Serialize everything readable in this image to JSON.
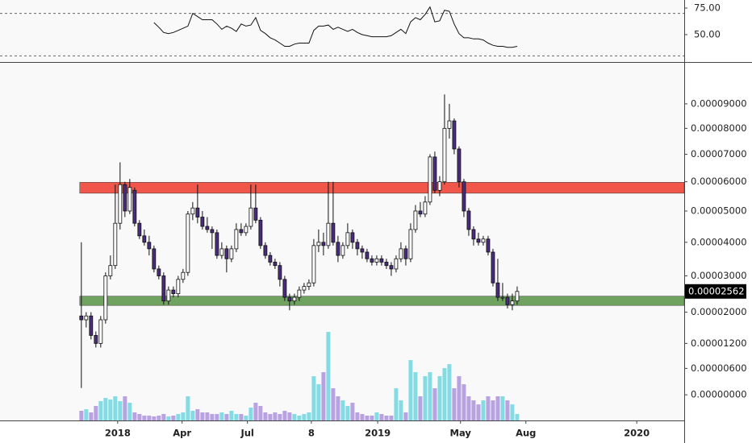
{
  "chart_data": {
    "type": "candlestick",
    "xlim": [
      -16.8,
      124.5
    ],
    "xticks": [
      {
        "value": 7.5,
        "label": "2018"
      },
      {
        "value": 20.8,
        "label": "Apr"
      },
      {
        "value": 34.3,
        "label": "Jul"
      },
      {
        "value": 47.5,
        "label": "8"
      },
      {
        "value": 61.2,
        "label": "2019"
      },
      {
        "value": 78.3,
        "label": "May"
      },
      {
        "value": 91.8,
        "label": "Aug"
      },
      {
        "value": 114.7,
        "label": "2020"
      }
    ],
    "ylim": [
      -5.5e-06,
      0.000108
    ],
    "log_scale": true,
    "yticks": [
      {
        "value": 9e-05,
        "label": "0.00009000"
      },
      {
        "value": 8e-05,
        "label": "0.00008000"
      },
      {
        "value": 7e-05,
        "label": "0.00007000"
      },
      {
        "value": 6e-05,
        "label": "0.00006000"
      },
      {
        "value": 5e-05,
        "label": "0.00005000"
      },
      {
        "value": 4e-05,
        "label": "0.00004000"
      },
      {
        "value": 3e-05,
        "label": "0.00003000"
      },
      {
        "value": 2e-05,
        "label": "0.00002000"
      },
      {
        "value": 1.2e-05,
        "label": "0.00001200"
      },
      {
        "value": 6e-06,
        "label": "0.00000600"
      },
      {
        "value": 0,
        "label": "0.00000000"
      }
    ],
    "up_color": "#ffffff",
    "down_color": "#4b2a82",
    "wick_color": "#111111",
    "candles": [
      [
        1.9e-05,
        4e-05,
        1.5e-06,
        1.8e-05
      ],
      [
        1.8e-05,
        2e-05,
        1.6e-05,
        1.9e-05
      ],
      [
        1.9e-05,
        2e-05,
        1.3e-05,
        1.4e-05
      ],
      [
        1.4e-05,
        1.5e-05,
        1.1e-05,
        1.2e-05
      ],
      [
        1.2e-05,
        1.9e-05,
        1.1e-05,
        1.8e-05
      ],
      [
        1.8e-05,
        3.1e-05,
        1.7e-05,
        3e-05
      ],
      [
        3e-05,
        3.6e-05,
        2.9e-05,
        3.3e-05
      ],
      [
        3.3e-05,
        5.9e-05,
        3.2e-05,
        4.6e-05
      ],
      [
        4.6e-05,
        6.7e-05,
        4.4e-05,
        5.9e-05
      ],
      [
        5.9e-05,
        6e-05,
        4.8e-05,
        5e-05
      ],
      [
        5e-05,
        6.1e-05,
        4.9e-05,
        5.8e-05
      ],
      [
        5.7e-05,
        5.8e-05,
        4.5e-05,
        4.6e-05
      ],
      [
        4.6e-05,
        4.7e-05,
        4.1e-05,
        4.2e-05
      ],
      [
        4.2e-05,
        4.4e-05,
        3.9e-05,
        4e-05
      ],
      [
        4e-05,
        4.2e-05,
        3.6e-05,
        3.8e-05
      ],
      [
        3.8e-05,
        3.9e-05,
        3.1e-05,
        3.2e-05
      ],
      [
        3.2e-05,
        3.3e-05,
        2.9e-05,
        3e-05
      ],
      [
        3e-05,
        3.1e-05,
        2.2e-05,
        2.3e-05
      ],
      [
        2.3e-05,
        2.7e-05,
        2.2e-05,
        2.6e-05
      ],
      [
        2.6e-05,
        2.7e-05,
        2.4e-05,
        2.5e-05
      ],
      [
        2.5e-05,
        3e-05,
        2.4e-05,
        2.9e-05
      ],
      [
        2.9e-05,
        3.2e-05,
        2.8e-05,
        3.1e-05
      ],
      [
        3.1e-05,
        5e-05,
        3e-05,
        4.9e-05
      ],
      [
        4.9e-05,
        5.3e-05,
        4.7e-05,
        5.1e-05
      ],
      [
        5.1e-05,
        5.9e-05,
        4.6e-05,
        4.8e-05
      ],
      [
        4.8e-05,
        5e-05,
        4.4e-05,
        4.5e-05
      ],
      [
        4.5e-05,
        4.8e-05,
        4.3e-05,
        4.4e-05
      ],
      [
        4.4e-05,
        4.5e-05,
        3.8e-05,
        4.3e-05
      ],
      [
        4.3e-05,
        4.4e-05,
        3.5e-05,
        3.6e-05
      ],
      [
        3.6e-05,
        4e-05,
        3.5e-05,
        3.8e-05
      ],
      [
        3.8e-05,
        3.9e-05,
        3.1e-05,
        3.5e-05
      ],
      [
        3.5e-05,
        3.9e-05,
        3.4e-05,
        3.8e-05
      ],
      [
        3.8e-05,
        4.6e-05,
        3.7e-05,
        4.4e-05
      ],
      [
        4.4e-05,
        4.6e-05,
        4.2e-05,
        4.3e-05
      ],
      [
        4.3e-05,
        4.6e-05,
        4.2e-05,
        4.5e-05
      ],
      [
        4.5e-05,
        5.9e-05,
        4.4e-05,
        5.1e-05
      ],
      [
        5.1e-05,
        5.9e-05,
        4.6e-05,
        4.7e-05
      ],
      [
        4.7e-05,
        4.8e-05,
        3.8e-05,
        3.9e-05
      ],
      [
        3.9e-05,
        4e-05,
        3.5e-05,
        3.6e-05
      ],
      [
        3.6e-05,
        3.7e-05,
        3.3e-05,
        3.4e-05
      ],
      [
        3.4e-05,
        3.5e-05,
        3.2e-05,
        3.3e-05
      ],
      [
        3.3e-05,
        3.4e-05,
        2.7e-05,
        2.9e-05
      ],
      [
        2.9e-05,
        3e-05,
        2.3e-05,
        2.4e-05
      ],
      [
        2.4e-05,
        2.5e-05,
        2.05e-05,
        2.3e-05
      ],
      [
        2.3e-05,
        2.5e-05,
        2.2e-05,
        2.4e-05
      ],
      [
        2.4e-05,
        2.7e-05,
        2.3e-05,
        2.6e-05
      ],
      [
        2.6e-05,
        2.8e-05,
        2.5e-05,
        2.7e-05
      ],
      [
        2.7e-05,
        2.9e-05,
        2.6e-05,
        2.8e-05
      ],
      [
        2.8e-05,
        4.1e-05,
        2.7e-05,
        3.9e-05
      ],
      [
        3.9e-05,
        4.4e-05,
        3.7e-05,
        4e-05
      ],
      [
        4e-05,
        4.3e-05,
        3.6e-05,
        3.9e-05
      ],
      [
        3.9e-05,
        6e-05,
        3.8e-05,
        4.6e-05
      ],
      [
        4.6e-05,
        6e-05,
        3.9e-05,
        4e-05
      ],
      [
        4e-05,
        4.2e-05,
        3.4e-05,
        3.6e-05
      ],
      [
        3.6e-05,
        4e-05,
        3.5e-05,
        3.9e-05
      ],
      [
        3.9e-05,
        4.6e-05,
        3.8e-05,
        4.3e-05
      ],
      [
        4.3e-05,
        4.4e-05,
        3.8e-05,
        4e-05
      ],
      [
        4e-05,
        4.1e-05,
        3.6e-05,
        3.8e-05
      ],
      [
        3.8e-05,
        3.9e-05,
        3.5e-05,
        3.7e-05
      ],
      [
        3.7e-05,
        3.8e-05,
        3.4e-05,
        3.5e-05
      ],
      [
        3.5e-05,
        3.6e-05,
        3.3e-05,
        3.4e-05
      ],
      [
        3.4e-05,
        3.6e-05,
        3.3e-05,
        3.5e-05
      ],
      [
        3.5e-05,
        3.6e-05,
        3.3e-05,
        3.4e-05
      ],
      [
        3.4e-05,
        3.5e-05,
        3.2e-05,
        3.3e-05
      ],
      [
        3.3e-05,
        3.4e-05,
        3e-05,
        3.2e-05
      ],
      [
        3.2e-05,
        3.6e-05,
        3.1e-05,
        3.5e-05
      ],
      [
        3.5e-05,
        4e-05,
        3.4e-05,
        3.8e-05
      ],
      [
        3.8e-05,
        3.9e-05,
        3.3e-05,
        3.5e-05
      ],
      [
        3.5e-05,
        4.6e-05,
        3.4e-05,
        4.4e-05
      ],
      [
        4.4e-05,
        5.2e-05,
        4.3e-05,
        5e-05
      ],
      [
        5e-05,
        5.3e-05,
        4.8e-05,
        4.9e-05
      ],
      [
        4.9e-05,
        5.5e-05,
        4.8e-05,
        5.3e-05
      ],
      [
        5.3e-05,
        7e-05,
        5.2e-05,
        6.9e-05
      ],
      [
        6.9e-05,
        7.1e-05,
        5.6e-05,
        5.7e-05
      ],
      [
        5.7e-05,
        6.2e-05,
        5.5e-05,
        6e-05
      ],
      [
        6e-05,
        9.4e-05,
        5.9e-05,
        8e-05
      ],
      [
        8e-05,
        9e-05,
        7.6e-05,
        8.3e-05
      ],
      [
        8.3e-05,
        8.4e-05,
        7e-05,
        7.2e-05
      ],
      [
        7.2e-05,
        7.3e-05,
        5.8e-05,
        6e-05
      ],
      [
        6e-05,
        6.1e-05,
        4.8e-05,
        5e-05
      ],
      [
        5e-05,
        5.1e-05,
        4.2e-05,
        4.4e-05
      ],
      [
        4.4e-05,
        4.5e-05,
        3.9e-05,
        4.1e-05
      ],
      [
        4.1e-05,
        4.3e-05,
        3.9e-05,
        4e-05
      ],
      [
        4e-05,
        4.2e-05,
        3.9e-05,
        4.1e-05
      ],
      [
        4.1e-05,
        4.2e-05,
        3.6e-05,
        3.7e-05
      ],
      [
        3.7e-05,
        3.8e-05,
        2.7e-05,
        2.8e-05
      ],
      [
        2.8e-05,
        3.5e-05,
        2.3e-05,
        2.4e-05
      ],
      [
        2.4e-05,
        2.8e-05,
        2.3e-05,
        2.4e-05
      ],
      [
        2.4e-05,
        2.5e-05,
        2.1e-05,
        2.2e-05
      ],
      [
        2.2e-05,
        2.5e-05,
        2.05e-05,
        2.3e-05
      ],
      [
        2.3e-05,
        2.7e-05,
        2.2e-05,
        2.562e-05
      ]
    ],
    "last_price_label": "0.00002562",
    "zones": [
      {
        "low": 5.6e-05,
        "high": 5.98e-05,
        "color": "#f0564a"
      },
      {
        "low": 2.18e-05,
        "high": 2.43e-05,
        "color": "#6fa35f"
      }
    ],
    "volume": {
      "ylim": [
        0,
        120
      ],
      "up_color": "#86dbe3",
      "down_color": "#b9a2e0",
      "values": [
        12,
        14,
        10,
        18,
        24,
        28,
        26,
        30,
        24,
        30,
        22,
        10,
        8,
        6,
        6,
        5,
        6,
        8,
        5,
        6,
        8,
        10,
        30,
        12,
        14,
        10,
        10,
        8,
        8,
        10,
        8,
        12,
        8,
        8,
        6,
        16,
        22,
        18,
        10,
        8,
        10,
        8,
        12,
        10,
        8,
        6,
        8,
        10,
        55,
        45,
        60,
        110,
        40,
        30,
        25,
        18,
        22,
        10,
        8,
        6,
        6,
        10,
        8,
        6,
        6,
        40,
        25,
        10,
        75,
        60,
        30,
        55,
        60,
        40,
        55,
        65,
        70,
        40,
        55,
        45,
        30,
        25,
        20,
        25,
        30,
        25,
        30,
        30,
        25,
        20,
        8
      ]
    },
    "rsi": {
      "ylim": [
        24.2,
        82.6
      ],
      "yticks": [
        {
          "value": 75,
          "label": "75.00"
        },
        {
          "value": 50,
          "label": "50.00"
        }
      ],
      "bands": [
        70,
        30
      ],
      "color": "#111111",
      "values": [
        null,
        null,
        null,
        null,
        null,
        null,
        null,
        null,
        null,
        null,
        null,
        null,
        null,
        null,
        null,
        61.4,
        57,
        52,
        51,
        52,
        54,
        56,
        58,
        70,
        67,
        64,
        64,
        64,
        60,
        55,
        58,
        56,
        53,
        60,
        58,
        59,
        66,
        54,
        51,
        47,
        45,
        42,
        39,
        39,
        41,
        42,
        42,
        42,
        54,
        58,
        58,
        59,
        55,
        57,
        55,
        53,
        55,
        52,
        50,
        49,
        48,
        48,
        48,
        48,
        49,
        52,
        55,
        51,
        62,
        66,
        64,
        69,
        76,
        62,
        63,
        73,
        72,
        60,
        51,
        47,
        47,
        46,
        46,
        45,
        42,
        40,
        39,
        39,
        38,
        38,
        39
      ]
    }
  }
}
